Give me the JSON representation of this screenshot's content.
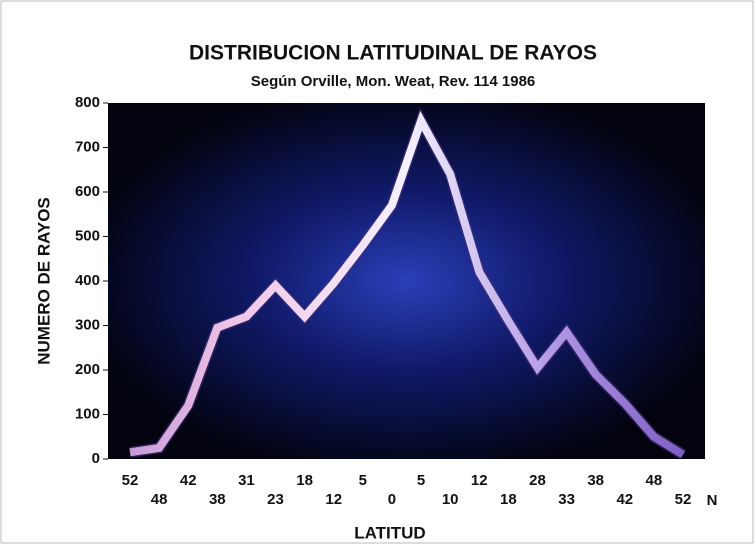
{
  "chart_data": {
    "type": "line",
    "title": "DISTRIBUCION LATITUDINAL DE RAYOS",
    "subtitle": "Según Orville, Mon. Weat, Rev. 114 1986",
    "y_label": "NUMERO DE RAYOS",
    "x_label": "LATITUD",
    "x_suffix": "N",
    "categories": [
      "52",
      "48",
      "42",
      "38",
      "31",
      "23",
      "18",
      "12",
      "5",
      "0",
      "5",
      "10",
      "12",
      "18",
      "28",
      "33",
      "38",
      "42",
      "48",
      "52"
    ],
    "values": [
      15,
      25,
      120,
      295,
      320,
      390,
      320,
      395,
      480,
      570,
      760,
      640,
      420,
      310,
      205,
      285,
      190,
      125,
      50,
      10
    ],
    "color": "#d9b8e8",
    "ylim": [
      0,
      800
    ],
    "yticks": [
      0,
      100,
      200,
      300,
      400,
      500,
      600,
      700,
      800
    ]
  }
}
